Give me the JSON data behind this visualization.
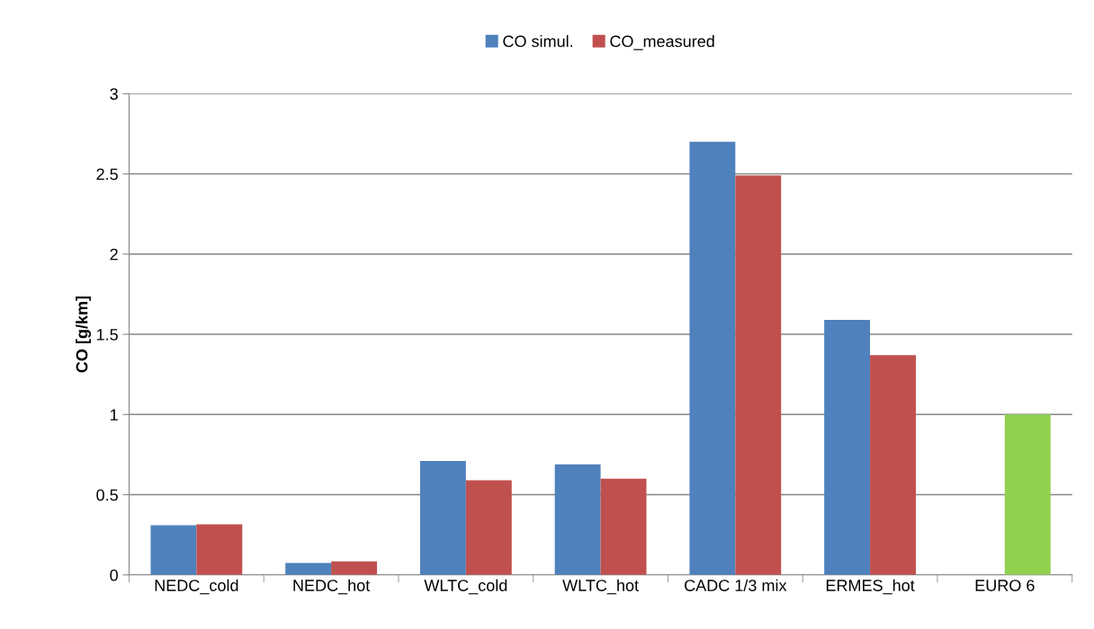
{
  "chart_data": {
    "type": "bar",
    "ylabel": "CO [g/km]",
    "categories": [
      "NEDC_cold",
      "NEDC_hot",
      "WLTC_cold",
      "WLTC_hot",
      "CADC 1/3 mix",
      "ERMES_hot",
      "EURO 6"
    ],
    "series": [
      {
        "name": "CO simul.",
        "color": "#4f81bd",
        "values": [
          0.31,
          0.075,
          0.71,
          0.69,
          2.7,
          1.59,
          null
        ]
      },
      {
        "name": "CO_measured",
        "color": "#c0504d",
        "colors": [
          "#c0504d",
          "#c0504d",
          "#c0504d",
          "#c0504d",
          "#c0504d",
          "#c0504d",
          "#92d050"
        ],
        "values": [
          0.315,
          0.085,
          0.59,
          0.6,
          2.49,
          1.37,
          1.0
        ]
      }
    ],
    "ylim": [
      0,
      3
    ],
    "yticks": [
      0,
      0.5,
      1,
      1.5,
      2,
      2.5,
      3
    ],
    "grid": "y",
    "legend": "top"
  }
}
